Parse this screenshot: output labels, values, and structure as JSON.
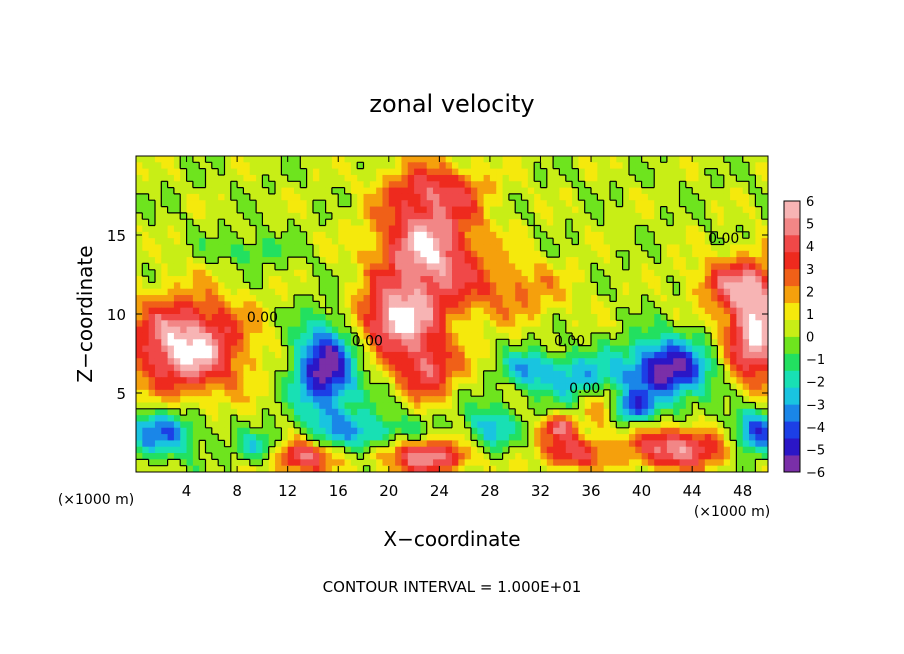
{
  "chart_data": {
    "type": "heatmap",
    "title": "zonal velocity",
    "xlabel": "X−coordinate",
    "ylabel": "Z−coordinate",
    "x_unit_left": "(×1000 m)",
    "x_unit_right": "(×1000 m)",
    "footer": "CONTOUR INTERVAL = 1.000E+01",
    "xlim": [
      0,
      50
    ],
    "ylim": [
      0,
      20
    ],
    "x_ticks": [
      4,
      8,
      12,
      16,
      20,
      24,
      28,
      32,
      36,
      40,
      44,
      48
    ],
    "y_ticks": [
      5,
      10,
      15
    ],
    "colorbar": {
      "min": -6,
      "max": 6,
      "ticks": [
        6,
        5,
        4,
        3,
        2,
        1,
        0,
        -1,
        -2,
        -3,
        -4,
        -5,
        -6
      ],
      "colors": [
        "#7a2fa8",
        "#2b16c6",
        "#1c3fe6",
        "#1a86e8",
        "#19c4e0",
        "#18e0b4",
        "#22e060",
        "#6ee41e",
        "#c8ee16",
        "#f5e90c",
        "#f5a00c",
        "#f06018",
        "#ee2a1e",
        "#f04848",
        "#f28686",
        "#f7b4b4"
      ]
    },
    "background_value": 0.3,
    "features": [
      {
        "kind": "jet",
        "x": 23,
        "z": 14,
        "sx": 4,
        "sz": 4,
        "value": 5.5
      },
      {
        "kind": "jet",
        "x": 20.5,
        "z": 9.5,
        "sx": 3,
        "sz": 2,
        "value": 5
      },
      {
        "kind": "jet",
        "x": 23,
        "z": 6.5,
        "sx": 2.5,
        "sz": 1.8,
        "value": 4
      },
      {
        "kind": "jet",
        "x": 4,
        "z": 8,
        "sx": 4.5,
        "sz": 3,
        "value": 6
      },
      {
        "kind": "jet",
        "x": 49,
        "z": 9,
        "sx": 2.5,
        "sz": 3.5,
        "value": 6
      },
      {
        "kind": "jet",
        "x": 13,
        "z": 1,
        "sx": 2.5,
        "sz": 1.1,
        "value": 5
      },
      {
        "kind": "jet",
        "x": 23,
        "z": 1,
        "sx": 3.5,
        "sz": 1.1,
        "value": 5
      },
      {
        "kind": "jet",
        "x": 34.5,
        "z": 1.2,
        "sx": 2.5,
        "sz": 1,
        "value": 4
      },
      {
        "kind": "jet",
        "x": 33.5,
        "z": 2.8,
        "sx": 1.4,
        "sz": 0.7,
        "value": 4
      },
      {
        "kind": "jet",
        "x": 43,
        "z": 1.5,
        "sx": 4,
        "sz": 1.3,
        "value": 5
      },
      {
        "kind": "jet",
        "x": 37,
        "z": 4,
        "sx": 1.5,
        "sz": 1.3,
        "value": 3
      },
      {
        "kind": "jet",
        "x": 47,
        "z": 12,
        "sx": 3,
        "sz": 1.5,
        "value": 3
      },
      {
        "kind": "jet",
        "x": 30,
        "z": 11.5,
        "sx": 4,
        "sz": 2,
        "value": 2
      },
      {
        "kind": "jet",
        "x": 24,
        "z": 18,
        "sx": 4,
        "sz": 1.5,
        "value": 2
      },
      {
        "kind": "trough",
        "x": 15,
        "z": 6.5,
        "sx": 2.5,
        "sz": 3,
        "value": -6
      },
      {
        "kind": "trough",
        "x": 42,
        "z": 6.5,
        "sx": 3.5,
        "sz": 2,
        "value": -6
      },
      {
        "kind": "trough",
        "x": 35,
        "z": 6,
        "sx": 3,
        "sz": 1.5,
        "value": -3
      },
      {
        "kind": "trough",
        "x": 31,
        "z": 6.5,
        "sx": 2,
        "sz": 1.2,
        "value": -3
      },
      {
        "kind": "trough",
        "x": 28,
        "z": 2.8,
        "sx": 2,
        "sz": 1.5,
        "value": -3
      },
      {
        "kind": "trough",
        "x": 18,
        "z": 2.5,
        "sx": 4,
        "sz": 1.2,
        "value": -3
      },
      {
        "kind": "trough",
        "x": 2,
        "z": 2.5,
        "sx": 3,
        "sz": 1.5,
        "value": -4
      },
      {
        "kind": "trough",
        "x": 10,
        "z": 1.5,
        "sx": 2,
        "sz": 1,
        "value": -3
      },
      {
        "kind": "trough",
        "x": 49,
        "z": 2.5,
        "sx": 2,
        "sz": 1.5,
        "value": -5
      },
      {
        "kind": "trough",
        "x": 9,
        "z": 14,
        "sx": 3,
        "sz": 1,
        "value": -1.5
      },
      {
        "kind": "trough",
        "x": 39,
        "z": 4,
        "sx": 2,
        "sz": 1,
        "value": -4
      }
    ],
    "contour_labels": [
      {
        "text": "0.00",
        "x": 10,
        "z": 9.5
      },
      {
        "text": "0.00",
        "x": 18.3,
        "z": 8
      },
      {
        "text": "0.00",
        "x": 34.3,
        "z": 8
      },
      {
        "text": "0.00",
        "x": 35.5,
        "z": 5
      },
      {
        "text": "0.00",
        "x": 46.5,
        "z": 14.5
      }
    ]
  }
}
